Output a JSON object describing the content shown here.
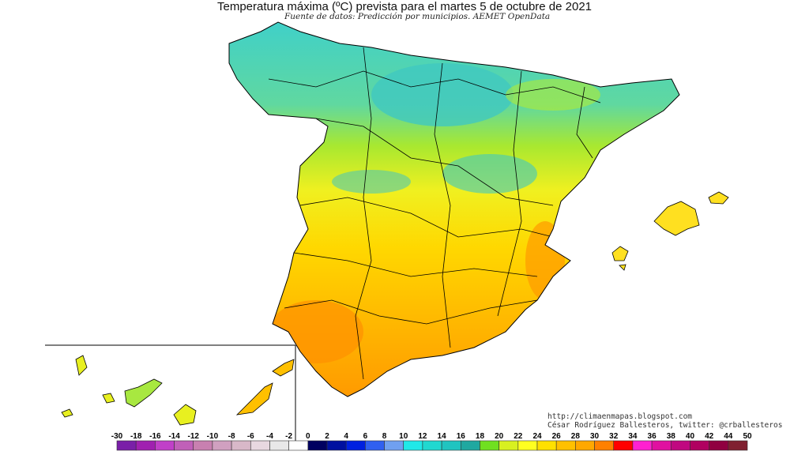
{
  "header": {
    "title": "Temperatura máxima (ºC) prevista para el martes 5 de octubre de 2021",
    "subtitle": "Fuente de datos: Predicción por municipios. AEMET OpenData"
  },
  "credits": {
    "url": "http://climaenmapas.blogspot.com",
    "author": "César Rodríguez Ballesteros, twitter: @crballesteros"
  },
  "legend": {
    "labels": [
      "-30",
      "-18",
      "-16",
      "-14",
      "-12",
      "-10",
      "-8",
      "-6",
      "-4",
      "-2",
      "0",
      "2",
      "4",
      "6",
      "8",
      "10",
      "12",
      "14",
      "16",
      "18",
      "20",
      "22",
      "24",
      "26",
      "28",
      "30",
      "32",
      "34",
      "36",
      "38",
      "40",
      "42",
      "44",
      "50"
    ],
    "colors": [
      "#7a1fa8",
      "#a020b0",
      "#c040c8",
      "#c060b8",
      "#c880b0",
      "#d0a0c0",
      "#d8b8c8",
      "#e8d8e0",
      "#e8e8e8",
      "#ffffff",
      "#000060",
      "#0010a0",
      "#0020e0",
      "#3060f0",
      "#70a0f0",
      "#20e8e8",
      "#20d8d0",
      "#20c4c0",
      "#20a8a0",
      "#70e020",
      "#d8f020",
      "#ffff20",
      "#ffe000",
      "#ffc000",
      "#ffa800",
      "#ff8000",
      "#ff0000",
      "#ff20d0",
      "#e010a0",
      "#c00880",
      "#b00060",
      "#900040",
      "#802030"
    ]
  },
  "map": {
    "colors": {
      "cool": "#40d0c0",
      "mild": "#80e040",
      "warm": "#ffe020",
      "hot": "#ffb000",
      "hottest": "#ff9000",
      "border": "#000000"
    }
  }
}
